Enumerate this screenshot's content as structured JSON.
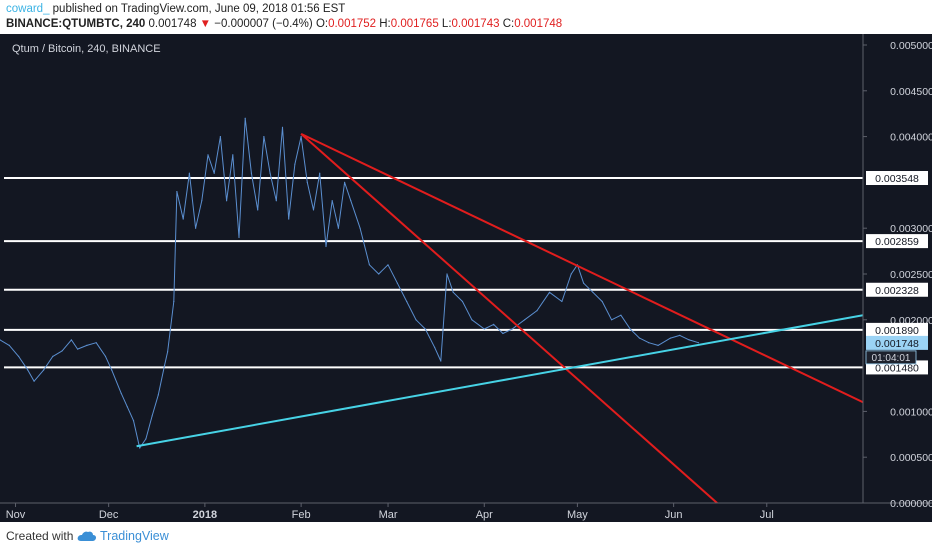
{
  "header": {
    "author": "coward_",
    "published": " published on TradingView.com, June 09, 2018 01:56 EST",
    "symbol": "BINANCE:QTUMBTC, 240",
    "last": "0.001748",
    "change_arrow": "▼",
    "change": "−0.000007 (−0.4%)",
    "o_label": "O:",
    "o_value": "0.001752",
    "h_label": "H:",
    "h_value": "0.001765",
    "l_label": "L:",
    "l_value": "0.001743",
    "c_label": "C:",
    "c_value": "0.001748"
  },
  "footer": {
    "created_with": "Created with",
    "brand": "TradingView",
    "logo_icon": "tradingview-cloud-icon"
  },
  "colors": {
    "background": "#131722",
    "price_line": "#5b8fd0",
    "trendline_red": "#e11d1d",
    "trendline_cyan": "#47d3e6",
    "horizontal_lines": "#ffffff",
    "last_price_badge": "#9bd3f5"
  },
  "chart_data": {
    "type": "line",
    "title": "Qtum / Bitcoin, 240, BINANCE",
    "x_ticks": [
      "Nov",
      "Dec",
      "2018",
      "Feb",
      "Mar",
      "Apr",
      "May",
      "Jun",
      "Jul"
    ],
    "y_ticks": [
      "0.005000",
      "0.004500",
      "0.004000",
      "0.003000",
      "0.002500",
      "0.002000",
      "0.001000",
      "0.000500",
      "0.000000"
    ],
    "ylim": [
      0.0,
      0.00512
    ],
    "x_range": [
      "2017-10-27",
      "2018-08-01"
    ],
    "series": [
      {
        "name": "QTUMBTC",
        "points": [
          [
            "2017-10-27",
            0.00178
          ],
          [
            "2017-10-30",
            0.00172
          ],
          [
            "2017-11-02",
            0.0016
          ],
          [
            "2017-11-05",
            0.00145
          ],
          [
            "2017-11-07",
            0.00133
          ],
          [
            "2017-11-10",
            0.00145
          ],
          [
            "2017-11-13",
            0.0016
          ],
          [
            "2017-11-16",
            0.00166
          ],
          [
            "2017-11-19",
            0.00178
          ],
          [
            "2017-11-21",
            0.00168
          ],
          [
            "2017-11-24",
            0.00172
          ],
          [
            "2017-11-27",
            0.00175
          ],
          [
            "2017-11-30",
            0.0016
          ],
          [
            "2017-12-02",
            0.00145
          ],
          [
            "2017-12-05",
            0.0012
          ],
          [
            "2017-12-07",
            0.00105
          ],
          [
            "2017-12-09",
            0.0009
          ],
          [
            "2017-12-11",
            0.0006
          ],
          [
            "2017-12-13",
            0.0007
          ],
          [
            "2017-12-15",
            0.00095
          ],
          [
            "2017-12-17",
            0.00118
          ],
          [
            "2017-12-19",
            0.0015
          ],
          [
            "2017-12-20",
            0.00165
          ],
          [
            "2017-12-22",
            0.0022
          ],
          [
            "2017-12-23",
            0.0034
          ],
          [
            "2017-12-25",
            0.0031
          ],
          [
            "2017-12-27",
            0.0036
          ],
          [
            "2017-12-29",
            0.003
          ],
          [
            "2017-12-31",
            0.0033
          ],
          [
            "2018-01-02",
            0.0038
          ],
          [
            "2018-01-04",
            0.0036
          ],
          [
            "2018-01-06",
            0.004
          ],
          [
            "2018-01-08",
            0.0033
          ],
          [
            "2018-01-10",
            0.0038
          ],
          [
            "2018-01-12",
            0.0029
          ],
          [
            "2018-01-14",
            0.0042
          ],
          [
            "2018-01-16",
            0.0036
          ],
          [
            "2018-01-18",
            0.0032
          ],
          [
            "2018-01-20",
            0.004
          ],
          [
            "2018-01-22",
            0.0036
          ],
          [
            "2018-01-24",
            0.0033
          ],
          [
            "2018-01-26",
            0.0041
          ],
          [
            "2018-01-28",
            0.0031
          ],
          [
            "2018-01-30",
            0.0037
          ],
          [
            "2018-02-01",
            0.004
          ],
          [
            "2018-02-03",
            0.0035
          ],
          [
            "2018-02-05",
            0.0032
          ],
          [
            "2018-02-07",
            0.0036
          ],
          [
            "2018-02-09",
            0.0028
          ],
          [
            "2018-02-11",
            0.0033
          ],
          [
            "2018-02-13",
            0.003
          ],
          [
            "2018-02-15",
            0.0035
          ],
          [
            "2018-02-17",
            0.0033
          ],
          [
            "2018-02-20",
            0.003
          ],
          [
            "2018-02-23",
            0.0026
          ],
          [
            "2018-02-26",
            0.0025
          ],
          [
            "2018-03-01",
            0.0026
          ],
          [
            "2018-03-04",
            0.0024
          ],
          [
            "2018-03-07",
            0.0022
          ],
          [
            "2018-03-10",
            0.002
          ],
          [
            "2018-03-13",
            0.0019
          ],
          [
            "2018-03-16",
            0.0017
          ],
          [
            "2018-03-18",
            0.00155
          ],
          [
            "2018-03-20",
            0.0025
          ],
          [
            "2018-03-22",
            0.0023
          ],
          [
            "2018-03-25",
            0.0022
          ],
          [
            "2018-03-28",
            0.002
          ],
          [
            "2018-04-01",
            0.0019
          ],
          [
            "2018-04-04",
            0.00195
          ],
          [
            "2018-04-07",
            0.00185
          ],
          [
            "2018-04-10",
            0.0019
          ],
          [
            "2018-04-14",
            0.002
          ],
          [
            "2018-04-18",
            0.0021
          ],
          [
            "2018-04-22",
            0.0023
          ],
          [
            "2018-04-26",
            0.0022
          ],
          [
            "2018-04-29",
            0.0025
          ],
          [
            "2018-05-01",
            0.0026
          ],
          [
            "2018-05-03",
            0.0024
          ],
          [
            "2018-05-06",
            0.0023
          ],
          [
            "2018-05-09",
            0.0022
          ],
          [
            "2018-05-12",
            0.002
          ],
          [
            "2018-05-15",
            0.00205
          ],
          [
            "2018-05-18",
            0.0019
          ],
          [
            "2018-05-21",
            0.0018
          ],
          [
            "2018-05-24",
            0.00175
          ],
          [
            "2018-05-27",
            0.00172
          ],
          [
            "2018-05-31",
            0.0018
          ],
          [
            "2018-06-03",
            0.00183
          ],
          [
            "2018-06-06",
            0.00178
          ],
          [
            "2018-06-09",
            0.00175
          ]
        ]
      }
    ],
    "horizontal_levels": [
      {
        "value": 0.003548,
        "label": "0.003548"
      },
      {
        "value": 0.002859,
        "label": "0.002859"
      },
      {
        "value": 0.002328,
        "label": "0.002328"
      },
      {
        "value": 0.00189,
        "label": "0.001890"
      },
      {
        "value": 0.00148,
        "label": "0.001480"
      }
    ],
    "trendlines": [
      {
        "color": "red",
        "from": [
          "2018-02-01",
          0.00403
        ],
        "to": [
          "2018-08-01",
          0.0011
        ]
      },
      {
        "color": "red",
        "from": [
          "2018-02-01",
          0.00403
        ],
        "to": [
          "2018-06-15",
          0.0
        ]
      },
      {
        "color": "cyan",
        "from": [
          "2017-12-10",
          0.00062
        ],
        "to": [
          "2018-08-01",
          0.00205
        ]
      }
    ],
    "last_price": {
      "value": 0.001748,
      "label": "0.001748"
    },
    "countdown": "01:04:01",
    "grid": false
  }
}
